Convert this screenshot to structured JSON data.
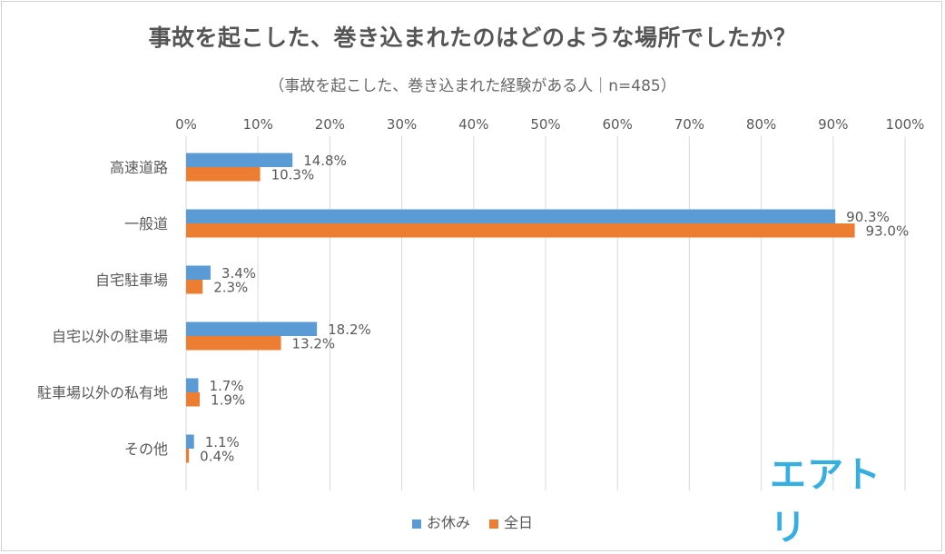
{
  "title": "事故を起こした、巻き込まれたのはどのような場所でしたか？",
  "subtitle": "（事故を起こした、巻き込まれた経験がある人｜n=485）",
  "logo_text": "エアトリ",
  "colors": {
    "holiday": "#5b9bd5",
    "all": "#ed7d31",
    "grid": "#d9d9d9",
    "text": "#595959"
  },
  "chart_data": {
    "type": "bar",
    "orientation": "horizontal",
    "categories": [
      "高速道路",
      "一般道",
      "自宅駐車場",
      "自宅以外の駐車場",
      "駐車場以外の私有地",
      "その他"
    ],
    "series": [
      {
        "name": "お休み",
        "values": [
          14.8,
          90.3,
          3.4,
          18.2,
          1.7,
          1.1
        ],
        "labels": [
          "14.8%",
          "90.3%",
          "3.4%",
          "18.2%",
          "1.7%",
          "1.1%"
        ]
      },
      {
        "name": "全日",
        "values": [
          10.3,
          93.0,
          2.3,
          13.2,
          1.9,
          0.4
        ],
        "labels": [
          "10.3%",
          "93.0%",
          "2.3%",
          "13.2%",
          "1.9%",
          "0.4%"
        ]
      }
    ],
    "xlim": [
      0,
      100
    ],
    "x_ticks": [
      "0%",
      "10%",
      "20%",
      "30%",
      "40%",
      "50%",
      "60%",
      "70%",
      "80%",
      "90%",
      "100%"
    ],
    "grid": true,
    "legend_position": "bottom"
  }
}
